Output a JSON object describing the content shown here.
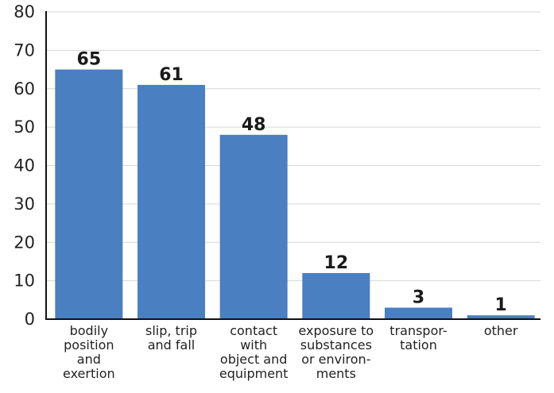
{
  "chart_data": {
    "type": "bar",
    "title": "",
    "xlabel": "",
    "ylabel": "",
    "ylim": [
      0,
      80
    ],
    "yticks": [
      0,
      10,
      20,
      30,
      40,
      50,
      60,
      70,
      80
    ],
    "grid": true,
    "bar_color": "#4a7fc1",
    "categories": [
      [
        "bodily",
        "position",
        "and",
        "exertion"
      ],
      [
        "slip, trip",
        "and fall"
      ],
      [
        "contact",
        "with",
        "object and",
        "equipment"
      ],
      [
        "exposure to",
        "substances",
        "or environ-",
        "ments"
      ],
      [
        "transpor-",
        "tation"
      ],
      [
        "other"
      ]
    ],
    "values": [
      65,
      61,
      48,
      12,
      3,
      1
    ],
    "data_labels": [
      "65",
      "61",
      "48",
      "12",
      "3",
      "1"
    ]
  }
}
